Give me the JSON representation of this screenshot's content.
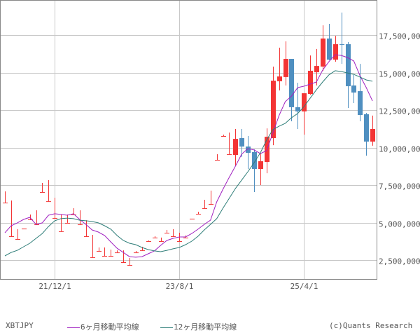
{
  "chart_data": {
    "type": "candlestick",
    "symbol": "XBTJPY",
    "credit": "(c)Quants Research",
    "colors": {
      "up": "#f33535",
      "down": "#4f8fc0",
      "ma6": "#a020c0",
      "ma12": "#2e7d78",
      "grid": "#c8c8c8",
      "frame": "#888888",
      "text": "#555555"
    },
    "grid": true,
    "ylim": [
      1250000,
      19500000
    ],
    "yticks": [
      2500000,
      5000000,
      7500000,
      10000000,
      12500000,
      15000000,
      17500000
    ],
    "ytick_labels": [
      "2,500,000",
      "5,000,000",
      "7,500,000",
      "10,000,000",
      "12,500,000",
      "15,000,000",
      "17,500,000"
    ],
    "xtick_labels": [
      {
        "at": "21/12",
        "label": "21/12/1"
      },
      {
        "at": "23/8",
        "label": "23/8/1"
      },
      {
        "at": "25/4",
        "label": "25/4/1"
      }
    ],
    "unit_multiplier": 1000000,
    "months": [
      "21/4",
      "21/5",
      "21/6",
      "21/7",
      "21/8",
      "21/9",
      "21/10",
      "21/11",
      "21/12",
      "22/1",
      "22/2",
      "22/3",
      "22/4",
      "22/5",
      "22/6",
      "22/7",
      "22/8",
      "22/9",
      "22/10",
      "22/11",
      "22/12",
      "23/1",
      "23/2",
      "23/3",
      "23/4",
      "23/5",
      "23/6",
      "23/7",
      "23/8",
      "23/9",
      "23/10",
      "23/11",
      "23/12",
      "24/1",
      "24/2",
      "24/3",
      "24/4",
      "24/5",
      "24/6",
      "24/7",
      "24/8",
      "24/9",
      "24/10",
      "24/11",
      "24/12",
      "25/1",
      "25/2",
      "25/3",
      "25/4",
      "25/5",
      "25/6",
      "25/7",
      "25/8",
      "25/9",
      "25/10",
      "25/11",
      "25/12",
      "26/1",
      "26/2",
      "26/3"
    ],
    "ohlc_millions": [
      [
        6.33,
        7.08,
        6.33,
        6.33
      ],
      [
        4.09,
        6.47,
        4.09,
        4.09
      ],
      [
        3.9,
        4.56,
        3.9,
        3.9
      ],
      [
        4.6,
        4.6,
        4.6,
        4.6
      ],
      [
        5.21,
        5.54,
        5.21,
        5.21
      ],
      [
        4.88,
        5.82,
        4.88,
        4.88
      ],
      [
        7.03,
        7.64,
        7.03,
        7.03
      ],
      [
        6.42,
        7.83,
        6.42,
        6.42
      ],
      [
        5.3,
        6.66,
        5.3,
        5.3
      ],
      [
        4.42,
        5.54,
        4.42,
        4.42
      ],
      [
        4.98,
        5.54,
        4.98,
        4.98
      ],
      [
        5.54,
        5.96,
        5.54,
        5.54
      ],
      [
        4.88,
        5.82,
        4.88,
        4.88
      ],
      [
        4.09,
        5.16,
        4.09,
        4.09
      ],
      [
        2.69,
        4.18,
        2.69,
        2.69
      ],
      [
        3.11,
        3.34,
        3.11,
        3.11
      ],
      [
        2.78,
        3.34,
        2.78,
        2.78
      ],
      [
        2.78,
        3.2,
        2.78,
        2.78
      ],
      [
        3.01,
        3.15,
        3.01,
        3.01
      ],
      [
        2.36,
        3.15,
        2.36,
        2.36
      ],
      [
        2.17,
        2.64,
        2.17,
        2.17
      ],
      [
        3.01,
        3.11,
        3.01,
        3.01
      ],
      [
        3.15,
        3.39,
        3.15,
        3.15
      ],
      [
        3.76,
        3.81,
        3.76,
        3.76
      ],
      [
        4.0,
        4.09,
        4.0,
        4.0
      ],
      [
        3.76,
        4.0,
        3.76,
        3.76
      ],
      [
        4.32,
        4.51,
        4.32,
        4.32
      ],
      [
        4.09,
        4.56,
        4.09,
        4.09
      ],
      [
        3.76,
        4.32,
        3.76,
        3.76
      ],
      [
        4.0,
        4.14,
        4.0,
        4.0
      ],
      [
        5.26,
        5.26,
        5.26,
        5.26
      ],
      [
        5.58,
        5.72,
        5.58,
        5.58
      ],
      [
        5.96,
        6.52,
        5.96,
        5.96
      ],
      [
        6.24,
        7.13,
        6.24,
        6.24
      ],
      [
        9.18,
        9.56,
        9.18,
        9.18
      ],
      [
        10.77,
        10.86,
        10.77,
        10.77
      ],
      [
        9.56,
        11.0,
        9.56,
        9.56
      ],
      [
        9.51,
        11.24,
        8.81,
        10.58
      ],
      [
        10.63,
        11.24,
        9.37,
        10.07
      ],
      [
        10.07,
        10.77,
        8.57,
        9.65
      ],
      [
        9.7,
        9.88,
        7.03,
        8.57
      ],
      [
        8.57,
        9.6,
        7.5,
        9.09
      ],
      [
        9.04,
        11.28,
        8.29,
        10.72
      ],
      [
        10.63,
        15.4,
        10.16,
        14.46
      ],
      [
        14.42,
        16.66,
        13.81,
        14.74
      ],
      [
        14.7,
        17.08,
        14.14,
        15.91
      ],
      [
        15.91,
        15.91,
        11.75,
        12.69
      ],
      [
        12.69,
        14.32,
        11.24,
        12.41
      ],
      [
        12.41,
        13.62,
        10.86,
        13.62
      ],
      [
        13.57,
        16.14,
        13.53,
        15.12
      ],
      [
        15.02,
        16.57,
        14.14,
        15.44
      ],
      [
        15.4,
        18.15,
        15.12,
        17.27
      ],
      [
        17.27,
        18.25,
        15.82,
        15.86
      ],
      [
        15.86,
        17.45,
        15.72,
        16.89
      ],
      [
        16.89,
        19.0,
        15.58,
        16.86
      ],
      [
        16.89,
        17.03,
        12.64,
        14.09
      ],
      [
        14.14,
        14.84,
        12.97,
        13.67
      ],
      [
        13.76,
        15.58,
        11.75,
        12.17
      ],
      [
        12.22,
        12.31,
        9.46,
        10.4
      ],
      [
        10.4,
        12.13,
        10.12,
        11.24
      ]
    ],
    "series": [
      {
        "name": "6ヶ月移動平均線",
        "values": [
          4.32,
          4.79,
          4.98,
          5.21,
          5.35,
          4.88,
          4.98,
          5.49,
          5.59,
          5.54,
          5.49,
          5.59,
          5.21,
          4.88,
          4.51,
          4.37,
          4.14,
          3.71,
          3.29,
          3.01,
          2.73,
          2.69,
          2.73,
          2.92,
          3.11,
          3.48,
          3.81,
          3.95,
          4.04,
          4.04,
          4.27,
          4.56,
          4.88,
          5.16,
          6.38,
          7.22,
          8.01,
          8.76,
          9.56,
          9.93,
          9.84,
          9.6,
          9.79,
          10.96,
          12.13,
          13.06,
          13.43,
          14.0,
          14.09,
          14.23,
          14.37,
          15.16,
          15.72,
          16.19,
          16.14,
          16.0,
          15.77,
          14.79,
          14.0,
          13.11
        ]
      },
      {
        "name": "12ヶ月移動平均線",
        "values": [
          2.78,
          3.01,
          3.15,
          3.39,
          3.62,
          3.95,
          4.27,
          4.74,
          5.12,
          5.26,
          5.3,
          5.26,
          5.16,
          5.12,
          5.07,
          4.98,
          4.79,
          4.56,
          4.14,
          3.81,
          3.62,
          3.53,
          3.34,
          3.2,
          3.11,
          3.06,
          3.15,
          3.25,
          3.34,
          3.53,
          3.76,
          4.09,
          4.51,
          4.88,
          5.26,
          5.96,
          6.61,
          7.27,
          7.83,
          8.39,
          8.99,
          9.65,
          10.49,
          11.19,
          11.42,
          11.61,
          11.99,
          12.27,
          12.73,
          13.29,
          13.85,
          14.37,
          14.84,
          15.12,
          15.07,
          14.97,
          14.88,
          14.7,
          14.51,
          14.42
        ]
      }
    ]
  }
}
